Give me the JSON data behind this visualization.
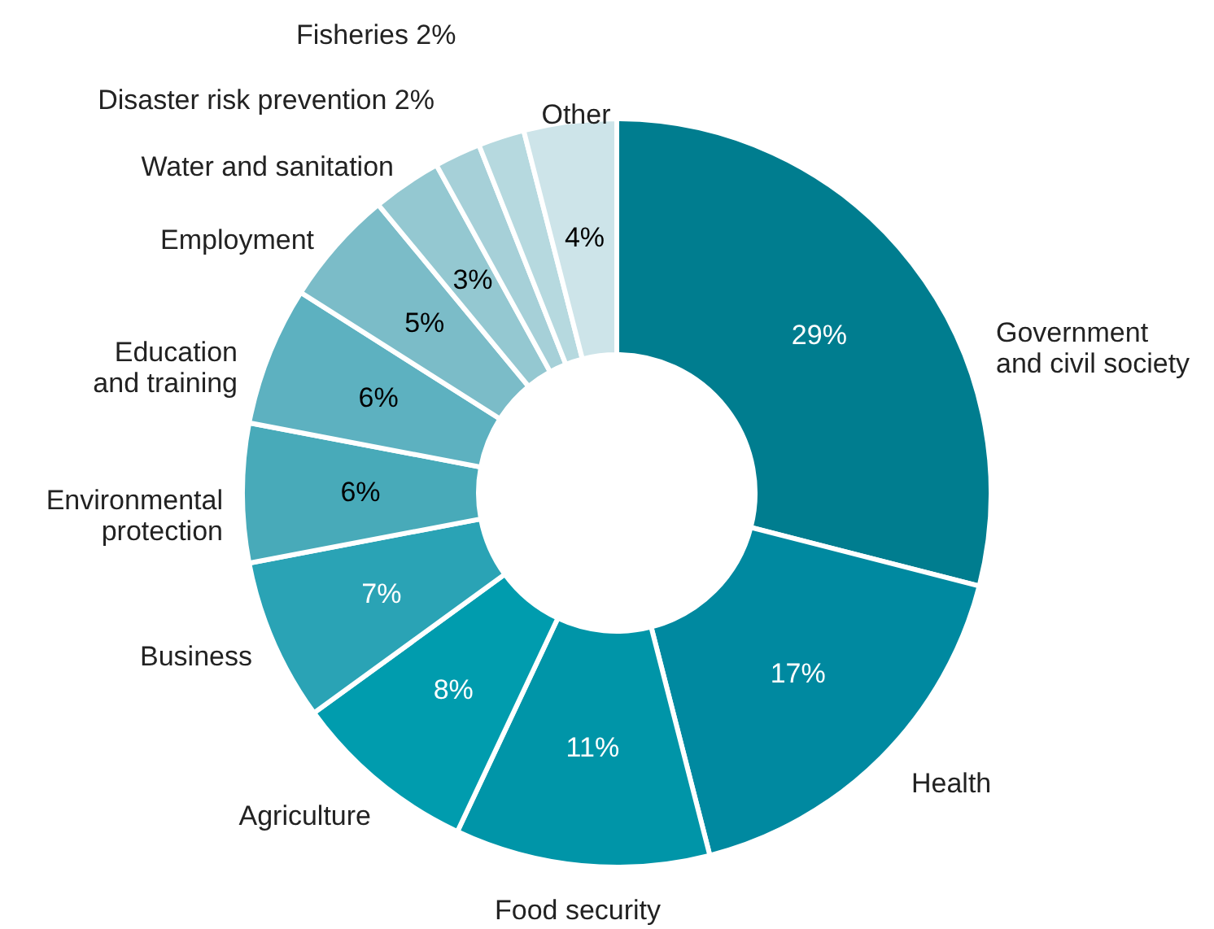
{
  "chart_data": {
    "type": "donut",
    "categories": [
      "Government\nand civil society",
      "Health",
      "Food security",
      "Agriculture",
      "Business",
      "Environmental\nprotection",
      "Education\nand training",
      "Employment",
      "Water and sanitation",
      "Disaster risk prevention",
      "Fisheries",
      "Other"
    ],
    "values": [
      29,
      17,
      11,
      8,
      7,
      6,
      6,
      5,
      3,
      2,
      2,
      4
    ],
    "colors": [
      "#007d8f",
      "#0089a0",
      "#0095a8",
      "#009cae",
      "#2aa3b5",
      "#48aab9",
      "#5db1c0",
      "#7bbcc8",
      "#94c8d1",
      "#a6d0d8",
      "#b6d9df",
      "#cde4e9"
    ],
    "value_labels": [
      "29%",
      "17%",
      "11%",
      "8%",
      "7%",
      "6%",
      "6%",
      "5%",
      "3%",
      "2%",
      "2%",
      "4%"
    ]
  }
}
